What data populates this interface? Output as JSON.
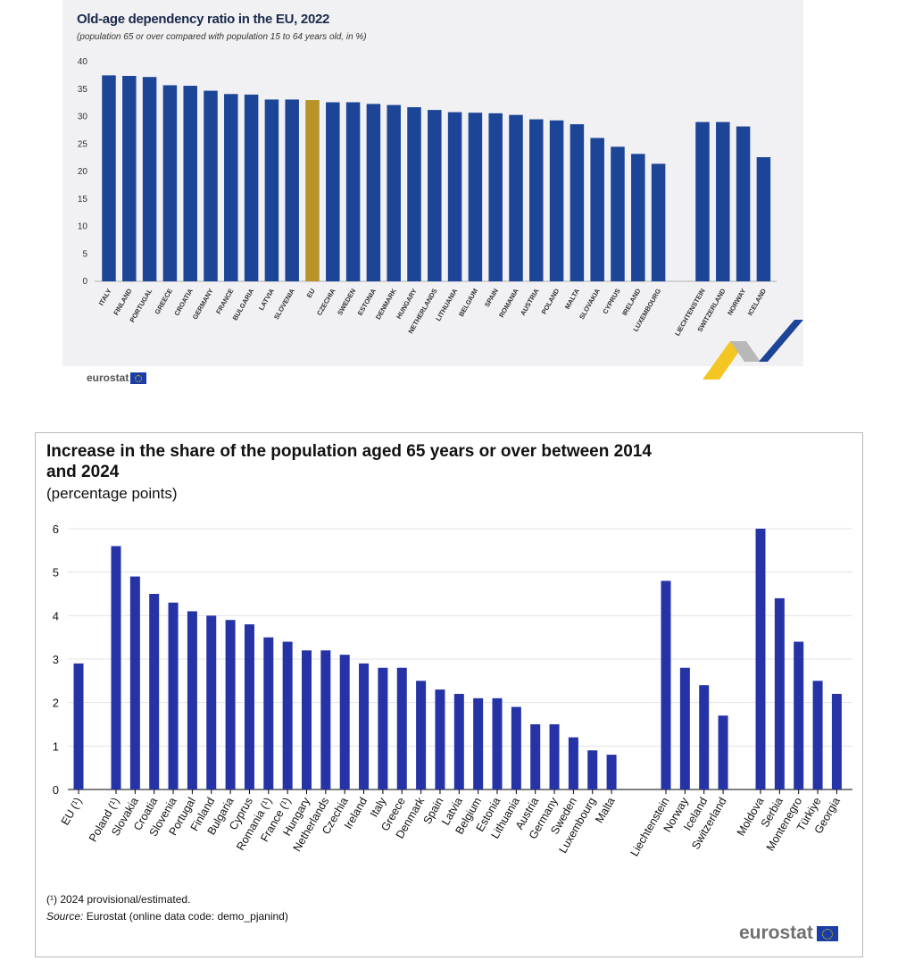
{
  "chart_data": [
    {
      "type": "bar",
      "title": "Old-age dependency ratio in the EU, 2022",
      "subtitle": "(population 65 or over compared with population 15 to 64 years old, in %)",
      "xlabel": "",
      "ylabel": "",
      "ylim": [
        0,
        40
      ],
      "yticks": [
        0,
        5,
        10,
        15,
        20,
        25,
        30,
        35,
        40
      ],
      "grid": false,
      "colors": {
        "bar": "#1c4597",
        "highlight": "#b8932a"
      },
      "highlight_category": "EU",
      "groups": [
        {
          "categories": [
            "ITALY",
            "FINLAND",
            "PORTUGAL",
            "GREECE",
            "CROATIA",
            "GERMANY",
            "FRANCE",
            "BULGARIA",
            "LATVIA",
            "SLOVENIA",
            "EU",
            "CZECHIA",
            "SWEDEN",
            "ESTONIA",
            "DENMARK",
            "HUNGARY",
            "NETHERLANDS",
            "LITHUANIA",
            "BELGIUM",
            "SPAIN",
            "ROMANIA",
            "AUSTRIA",
            "POLAND",
            "MALTA",
            "SLOVAKIA",
            "CYPRUS",
            "IRELAND",
            "LUXEMBOURG"
          ],
          "values": [
            37.5,
            37.4,
            37.2,
            35.7,
            35.6,
            34.7,
            34.1,
            34.0,
            33.1,
            33.1,
            33.0,
            32.6,
            32.6,
            32.3,
            32.1,
            31.7,
            31.2,
            30.8,
            30.7,
            30.6,
            30.3,
            29.5,
            29.3,
            28.6,
            26.1,
            24.5,
            23.2,
            21.4
          ]
        },
        {
          "categories": [
            "LIECHTENSTEIN",
            "SWITZERLAND",
            "NORWAY",
            "ICELAND"
          ],
          "values": [
            29.0,
            29.0,
            28.2,
            22.6
          ]
        }
      ],
      "source_logo": "eurostat"
    },
    {
      "type": "bar",
      "title": "Increase in the share of the population aged 65 years or over between 2014 and 2024",
      "subtitle": "(percentage points)",
      "xlabel": "",
      "ylabel": "",
      "ylim": [
        0,
        6
      ],
      "yticks": [
        0,
        1,
        2,
        3,
        4,
        5,
        6
      ],
      "grid": true,
      "colors": {
        "bar": "#2533a6",
        "grid": "#e3e3e3"
      },
      "groups": [
        {
          "categories": [
            "EU (¹)"
          ],
          "values": [
            2.9
          ]
        },
        {
          "categories": [
            "Poland (¹)",
            "Slovakia",
            "Croatia",
            "Slovenia",
            "Portugal",
            "Finland",
            "Bulgaria",
            "Cyprus",
            "Romania (¹)",
            "France (¹)",
            "Hungary",
            "Netherlands",
            "Czechia",
            "Ireland",
            "Italy",
            "Greece",
            "Denmark",
            "Spain",
            "Latvia",
            "Belgium",
            "Estonia",
            "Lithuania",
            "Austria",
            "Germany",
            "Sweden",
            "Luxembourg",
            "Malta"
          ],
          "values": [
            5.6,
            4.9,
            4.5,
            4.3,
            4.1,
            4.0,
            3.9,
            3.8,
            3.5,
            3.4,
            3.2,
            3.2,
            3.1,
            2.9,
            2.8,
            2.8,
            2.5,
            2.3,
            2.2,
            2.1,
            2.1,
            1.9,
            1.5,
            1.5,
            1.2,
            0.9,
            0.8
          ]
        },
        {
          "categories": [
            "Liechtenstein",
            "Norway",
            "Iceland",
            "Switzerland"
          ],
          "values": [
            4.8,
            2.8,
            2.4,
            1.7
          ]
        },
        {
          "categories": [
            "Moldova",
            "Serbia",
            "Montenegro",
            "Türkiye",
            "Georgia"
          ],
          "values": [
            6.0,
            4.4,
            3.4,
            2.5,
            2.2
          ]
        }
      ],
      "footnote": "(¹) 2024 provisional/estimated.",
      "source_label": "Source:",
      "source_text": " Eurostat (online data code: demo_pjanind)",
      "source_logo": "eurostat"
    }
  ]
}
